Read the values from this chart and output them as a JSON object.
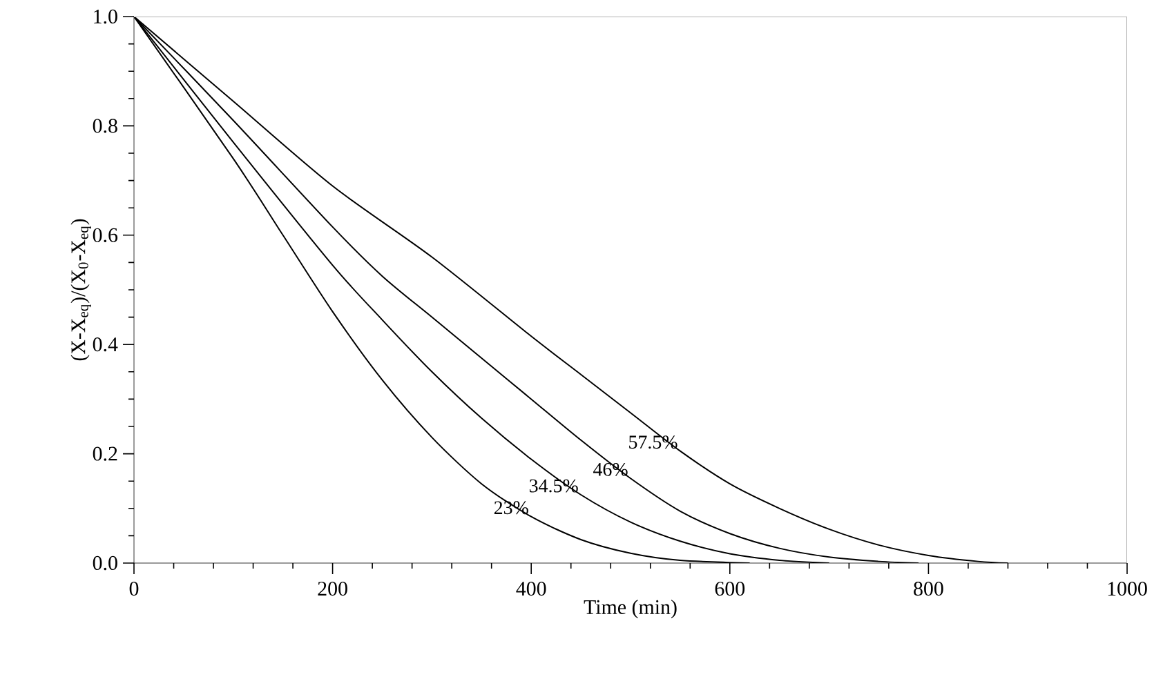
{
  "chart_data": {
    "type": "line",
    "xlabel": "Time (min)",
    "ylabel": "(X-X$_{eq}$)/(X$_{0}$-X$_{eq}$)",
    "xlim": [
      0,
      1000
    ],
    "ylim": [
      0,
      1
    ],
    "xticks": [
      0,
      200,
      400,
      600,
      800,
      1000
    ],
    "yticks": [
      {
        "value": 0,
        "label": "0.0"
      },
      {
        "value": 0.2,
        "label": "0.2"
      },
      {
        "value": 0.4,
        "label": "0.4"
      },
      {
        "value": 0.6,
        "label": "0.6"
      },
      {
        "value": 0.8,
        "label": "0.8"
      },
      {
        "value": 1,
        "label": "1.0"
      }
    ],
    "grid": false,
    "legend": false,
    "marker": "none",
    "line_style": "solid",
    "series": [
      {
        "name": "23%",
        "color": "#000000",
        "x": [
          0,
          100,
          150,
          200,
          250,
          300,
          350,
          400,
          450,
          500,
          550,
          620
        ],
        "values": [
          1,
          0.74,
          0.6,
          0.46,
          0.335,
          0.23,
          0.145,
          0.085,
          0.043,
          0.018,
          0.005,
          0
        ]
      },
      {
        "name": "34.5%",
        "color": "#000000",
        "x": [
          0,
          100,
          200,
          250,
          300,
          350,
          400,
          450,
          500,
          550,
          600,
          650,
          700
        ],
        "values": [
          1,
          0.77,
          0.545,
          0.445,
          0.35,
          0.265,
          0.19,
          0.125,
          0.075,
          0.04,
          0.017,
          0.005,
          0
        ]
      },
      {
        "name": "46%",
        "color": "#000000",
        "x": [
          0,
          100,
          200,
          250,
          300,
          350,
          400,
          450,
          500,
          550,
          600,
          650,
          700,
          750,
          790
        ],
        "values": [
          1,
          0.81,
          0.615,
          0.525,
          0.45,
          0.375,
          0.3,
          0.225,
          0.155,
          0.095,
          0.054,
          0.027,
          0.011,
          0.003,
          0
        ]
      },
      {
        "name": "57.5%",
        "color": "#000000",
        "x": [
          0,
          100,
          200,
          300,
          400,
          450,
          500,
          550,
          600,
          650,
          700,
          750,
          800,
          850,
          880
        ],
        "values": [
          1,
          0.845,
          0.69,
          0.56,
          0.415,
          0.345,
          0.275,
          0.205,
          0.145,
          0.1,
          0.062,
          0.033,
          0.014,
          0.003,
          0
        ]
      }
    ]
  }
}
